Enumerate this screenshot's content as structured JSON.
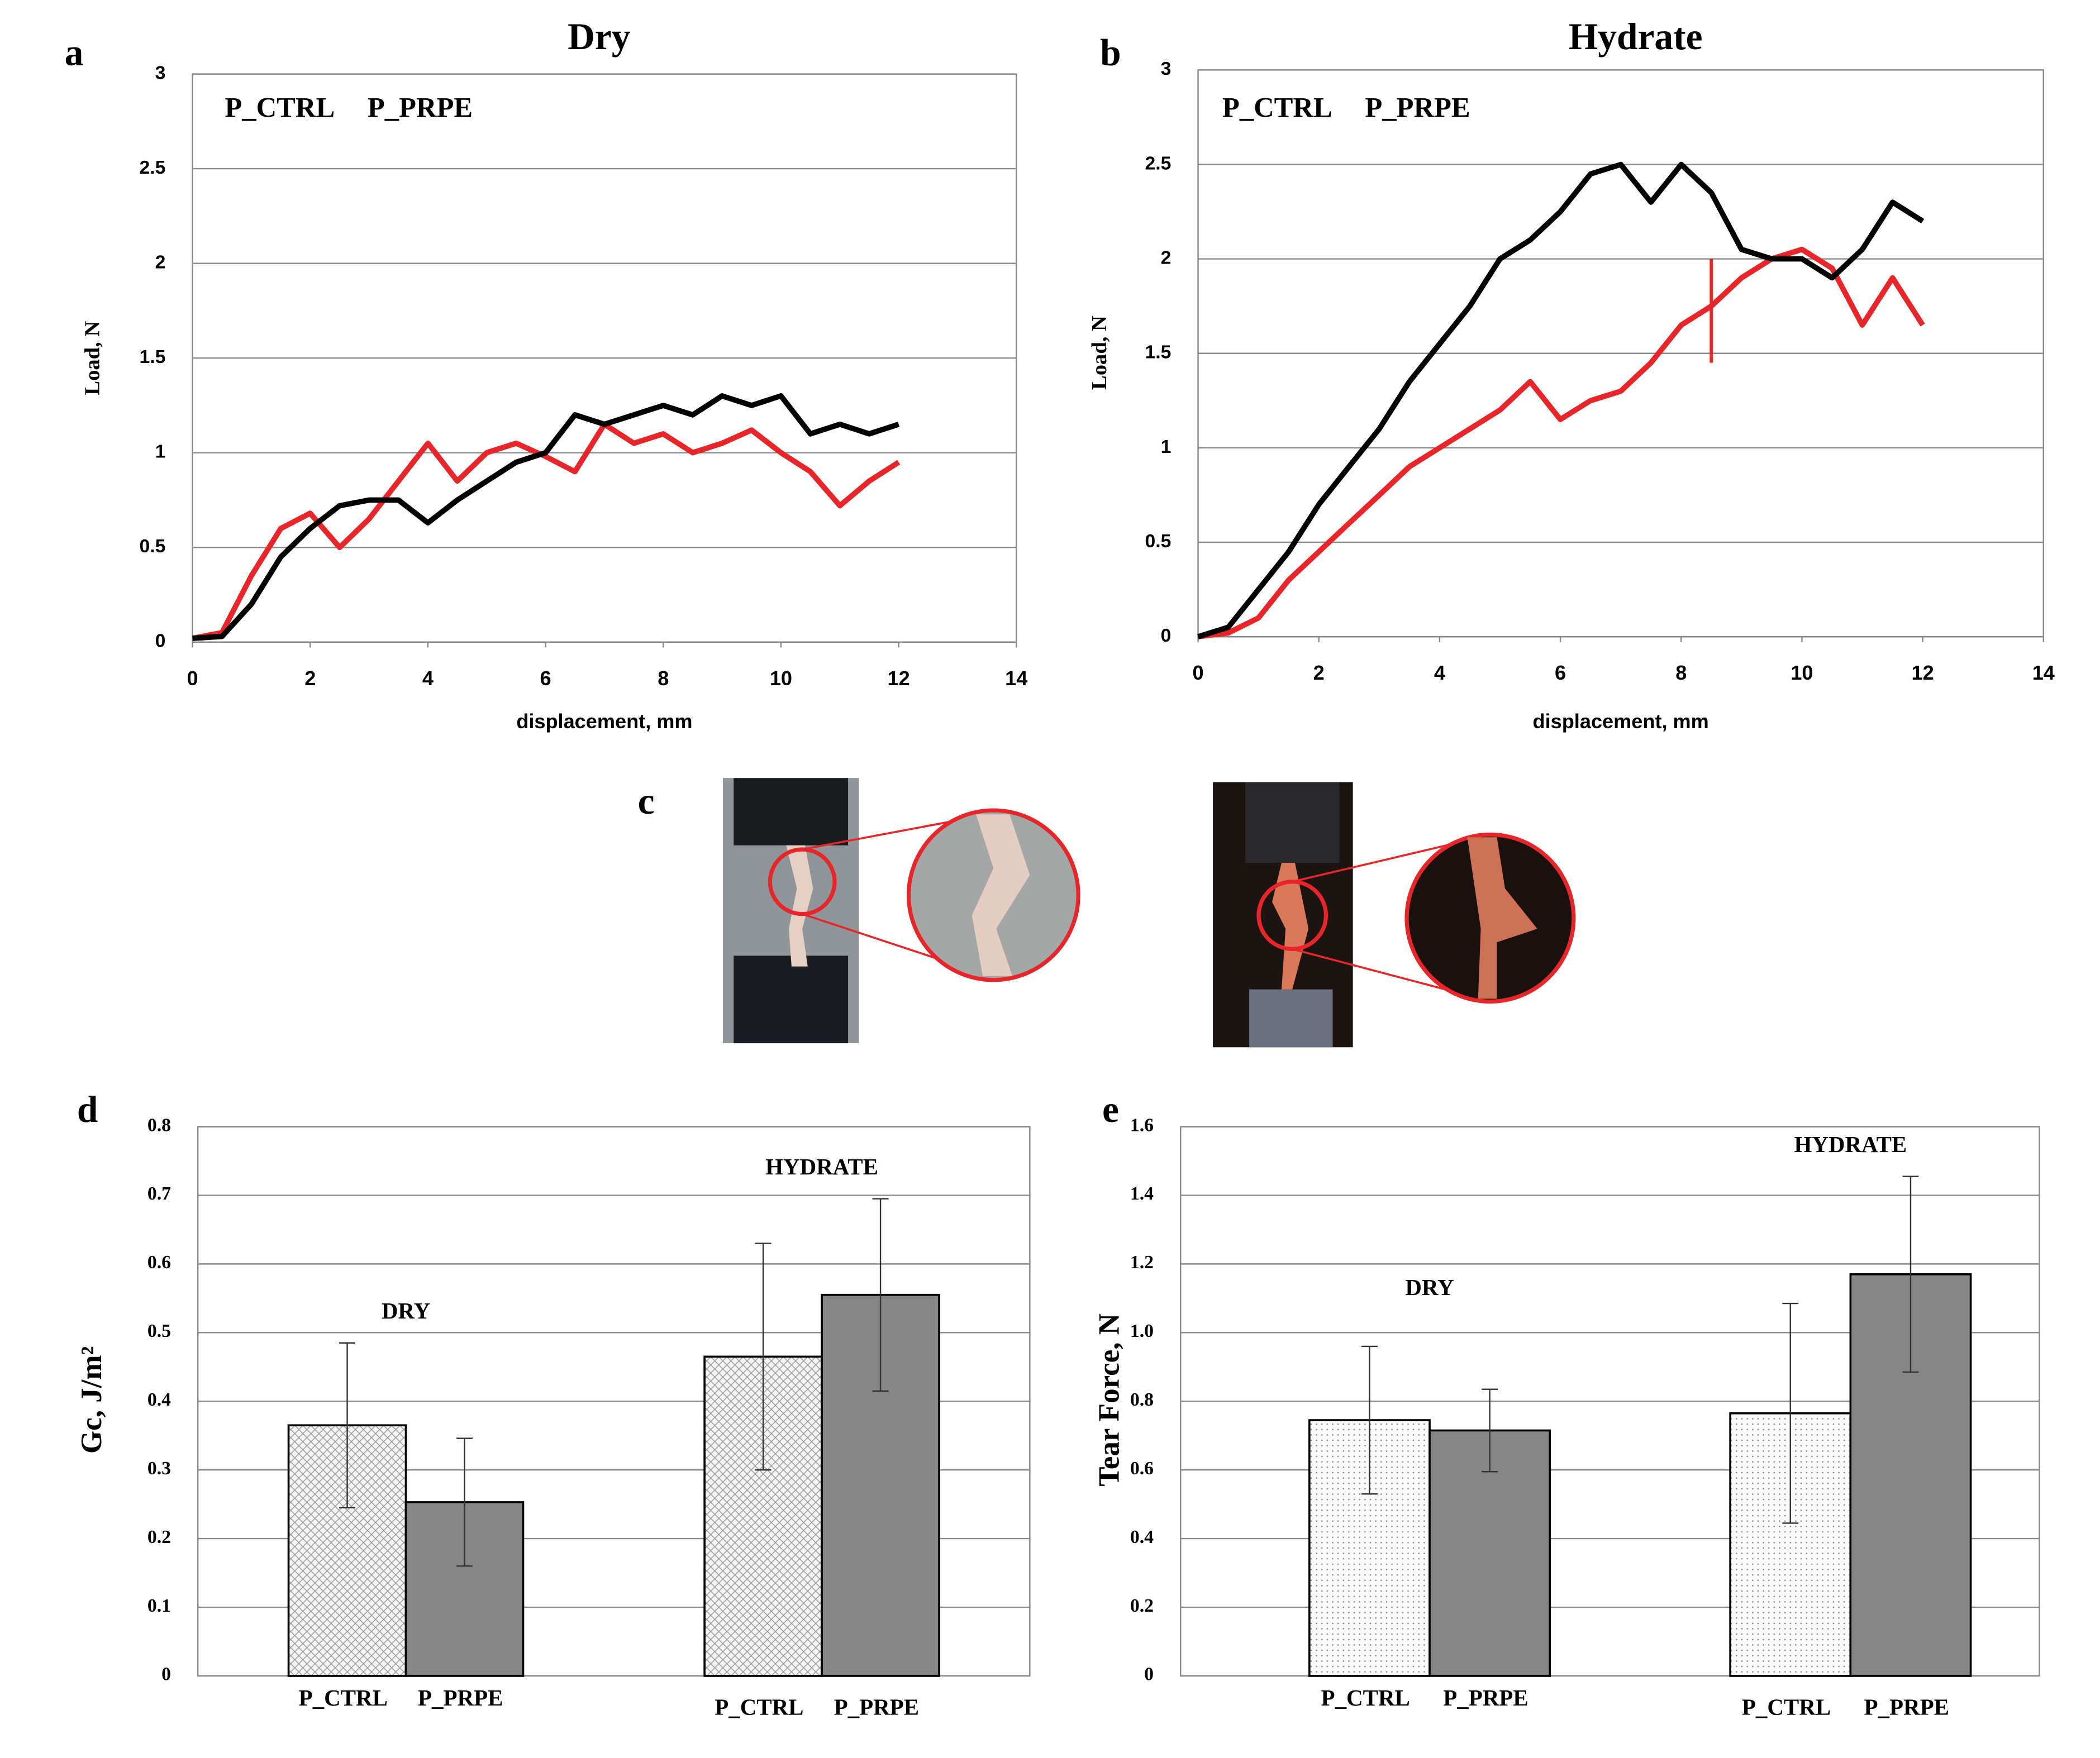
{
  "panels": {
    "c": {
      "label": "c"
    }
  },
  "chart_data": [
    {
      "type": "line",
      "panel_label": "a",
      "title": "Dry",
      "x_label": "displacement, mm",
      "y_label": "Load, N",
      "xlim": [
        0,
        14
      ],
      "xticks": [
        0,
        2,
        4,
        6,
        8,
        10,
        12,
        14
      ],
      "ylim": [
        0,
        3
      ],
      "yticks": [
        0,
        0.5,
        1,
        1.5,
        2,
        2.5,
        3
      ],
      "grid": true,
      "legend": "upper left",
      "x": [
        0,
        0.5,
        1,
        1.5,
        2,
        2.5,
        3,
        3.5,
        4,
        4.5,
        5,
        5.5,
        6,
        6.5,
        7,
        7.5,
        8,
        8.5,
        9,
        9.5,
        10,
        10.5,
        11,
        11.5,
        12
      ],
      "series": [
        {
          "name": "P_CTRL",
          "color": "#e8262a",
          "values": [
            0.02,
            0.05,
            0.35,
            0.6,
            0.68,
            0.5,
            0.65,
            0.85,
            1.05,
            0.85,
            1.0,
            1.05,
            0.98,
            0.9,
            1.15,
            1.05,
            1.1,
            1.0,
            1.05,
            1.12,
            1.0,
            0.9,
            0.72,
            0.85,
            0.95
          ]
        },
        {
          "name": "P_PRPE",
          "color": "#000000",
          "values": [
            0.02,
            0.03,
            0.2,
            0.45,
            0.6,
            0.72,
            0.75,
            0.75,
            0.63,
            0.75,
            0.85,
            0.95,
            1.0,
            1.2,
            1.15,
            1.2,
            1.25,
            1.2,
            1.3,
            1.25,
            1.3,
            1.1,
            1.15,
            1.1,
            1.15
          ]
        }
      ]
    },
    {
      "type": "line",
      "panel_label": "b",
      "title": "Hydrate",
      "x_label": "displacement, mm",
      "y_label": "Load, N",
      "xlim": [
        0,
        14
      ],
      "xticks": [
        0,
        2,
        4,
        6,
        8,
        10,
        12,
        14
      ],
      "ylim": [
        0,
        3
      ],
      "yticks": [
        0,
        0.5,
        1,
        1.5,
        2,
        2.5,
        3
      ],
      "grid": true,
      "legend": "upper left",
      "x": [
        0,
        0.5,
        1,
        1.5,
        2,
        2.5,
        3,
        3.5,
        4,
        4.5,
        5,
        5.5,
        6,
        6.5,
        7,
        7.5,
        8,
        8.5,
        9,
        9.5,
        10,
        10.5,
        11,
        11.5,
        12
      ],
      "series": [
        {
          "name": "P_CTRL",
          "color": "#e8262a",
          "values": [
            0,
            0.02,
            0.1,
            0.3,
            0.45,
            0.6,
            0.75,
            0.9,
            1.0,
            1.1,
            1.2,
            1.35,
            1.15,
            1.25,
            1.3,
            1.45,
            1.65,
            1.75,
            1.9,
            2.0,
            2.05,
            1.95,
            1.65,
            1.9,
            1.65
          ]
        },
        {
          "name": "P_PRPE",
          "color": "#000000",
          "values": [
            0,
            0.05,
            0.25,
            0.45,
            0.7,
            0.9,
            1.1,
            1.35,
            1.55,
            1.75,
            2.0,
            2.1,
            2.25,
            2.45,
            2.5,
            2.3,
            2.5,
            2.35,
            2.05,
            2.0,
            2.0,
            1.9,
            2.05,
            2.3,
            2.2
          ]
        }
      ],
      "vline": {
        "x": 8.5,
        "ymin": 1.45,
        "ymax": 2.0,
        "color": "#e8262a"
      }
    },
    {
      "type": "bar",
      "panel_label": "d",
      "y_label": "Gc, J/m²",
      "ylim": [
        0,
        0.8
      ],
      "yticks": [
        0,
        0.1,
        0.2,
        0.3,
        0.4,
        0.5,
        0.6,
        0.7,
        0.8
      ],
      "grid": true,
      "groups": [
        "DRY",
        "HYDRATE"
      ],
      "series": [
        {
          "name": "P_CTRL",
          "color": "#f2f2f2",
          "pattern": "crosshatch",
          "values": [
            0.365,
            0.465
          ],
          "errors": [
            0.12,
            0.165
          ]
        },
        {
          "name": "P_PRPE",
          "color": "#868686",
          "values": [
            0.253,
            0.555
          ],
          "errors": [
            0.093,
            0.14
          ]
        }
      ]
    },
    {
      "type": "bar",
      "panel_label": "e",
      "y_label": "Tear Force, N",
      "ylim": [
        0,
        1.6
      ],
      "yticks": [
        0,
        0.2,
        0.4,
        0.6,
        0.8,
        {
          "value": 1,
          "label": "1.0"
        },
        1.2,
        1.4,
        1.6
      ],
      "grid": true,
      "groups": [
        "DRY",
        "HYDRATE"
      ],
      "series": [
        {
          "name": "P_CTRL",
          "color": "#f7f7f7",
          "pattern": "dots",
          "values": [
            0.745,
            0.765
          ],
          "errors": [
            0.215,
            0.32
          ]
        },
        {
          "name": "P_PRPE",
          "color": "#868686",
          "values": [
            0.715,
            1.17
          ],
          "errors": [
            0.12,
            0.285
          ]
        }
      ]
    }
  ]
}
